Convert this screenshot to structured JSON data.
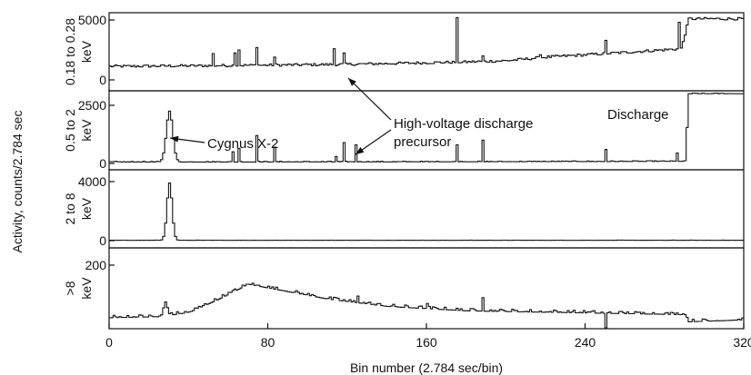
{
  "chart_data": {
    "type": "line",
    "title": "",
    "xlabel": "Bin number (2.784 sec/bin)",
    "ylabel": "Activity, counts/2.784 sec",
    "xlim": [
      0,
      320
    ],
    "x_ticks": [
      {
        "value": 0,
        "label": "0"
      },
      {
        "value": 80,
        "label": "80"
      },
      {
        "value": 160,
        "label": "160"
      },
      {
        "value": 240,
        "label": "240"
      },
      {
        "value": 320,
        "label": "320"
      }
    ],
    "grid": false,
    "panels": [
      {
        "label_lines": [
          "0.18 to 0.28",
          "keV"
        ],
        "ylim": [
          0,
          5000
        ],
        "y_ticks": [
          {
            "value": 0,
            "label": "0"
          },
          {
            "value": 5000,
            "label": "5000"
          }
        ],
        "baseline": [
          [
            0,
            1130
          ],
          [
            60,
            1200
          ],
          [
            120,
            1300
          ],
          [
            180,
            1500
          ],
          [
            200,
            1600
          ],
          [
            220,
            1900
          ],
          [
            260,
            2300
          ],
          [
            288,
            2600
          ],
          [
            292,
            5100
          ]
        ],
        "noise": 110,
        "peaks": [
          {
            "x": 52,
            "y": 2200,
            "w": 1
          },
          {
            "x": 63,
            "y": 2250,
            "w": 1
          },
          {
            "x": 65,
            "y": 2500,
            "w": 1
          },
          {
            "x": 74,
            "y": 2700,
            "w": 1
          },
          {
            "x": 83,
            "y": 1900,
            "w": 1
          },
          {
            "x": 113,
            "y": 2600,
            "w": 1
          },
          {
            "x": 118,
            "y": 2250,
            "w": 1
          },
          {
            "x": 175,
            "y": 5200,
            "w": 1
          },
          {
            "x": 188,
            "y": 2000,
            "w": 1
          },
          {
            "x": 217,
            "y": 2100,
            "w": 1
          },
          {
            "x": 250,
            "y": 3300,
            "w": 1
          },
          {
            "x": 287,
            "y": 4800,
            "w": 1
          }
        ]
      },
      {
        "label_lines": [
          "0.5 to 2",
          "keV"
        ],
        "ylim": [
          0,
          2500
        ],
        "y_ticks": [
          {
            "value": 0,
            "label": "0"
          },
          {
            "value": 2500,
            "label": "2500"
          }
        ],
        "baseline": [
          [
            0,
            60
          ],
          [
            180,
            70
          ],
          [
            290,
            90
          ],
          [
            292,
            3000
          ]
        ],
        "noise": 30,
        "peaks": [
          {
            "x": 30,
            "y": 2250,
            "w": 5
          },
          {
            "x": 62,
            "y": 500,
            "w": 1
          },
          {
            "x": 65,
            "y": 650,
            "w": 1
          },
          {
            "x": 74,
            "y": 1200,
            "w": 1
          },
          {
            "x": 83,
            "y": 700,
            "w": 1
          },
          {
            "x": 114,
            "y": 300,
            "w": 1
          },
          {
            "x": 118,
            "y": 900,
            "w": 1
          },
          {
            "x": 124,
            "y": 800,
            "w": 1
          },
          {
            "x": 175,
            "y": 800,
            "w": 1
          },
          {
            "x": 188,
            "y": 1000,
            "w": 1
          },
          {
            "x": 250,
            "y": 600,
            "w": 1
          },
          {
            "x": 286,
            "y": 450,
            "w": 1
          }
        ]
      },
      {
        "label_lines": [
          "2 to 8",
          "keV"
        ],
        "ylim": [
          0,
          4000
        ],
        "y_ticks": [
          {
            "value": 0,
            "label": "0"
          },
          {
            "value": 4000,
            "label": "4000"
          }
        ],
        "baseline": [
          [
            0,
            20
          ],
          [
            320,
            20
          ]
        ],
        "noise": 15,
        "peaks": [
          {
            "x": 30,
            "y": 3900,
            "w": 4
          }
        ]
      },
      {
        "label_lines": [
          ">8",
          "keV"
        ],
        "ylim": [
          0,
          200
        ],
        "y_ticks": [
          {
            "value": 200,
            "label": "200"
          }
        ],
        "baseline": [
          [
            0,
            22
          ],
          [
            25,
            25
          ],
          [
            40,
            40
          ],
          [
            55,
            85
          ],
          [
            70,
            135
          ],
          [
            90,
            110
          ],
          [
            110,
            85
          ],
          [
            140,
            60
          ],
          [
            180,
            45
          ],
          [
            240,
            38
          ],
          [
            290,
            32
          ],
          [
            292,
            8
          ],
          [
            310,
            12
          ],
          [
            320,
            15
          ]
        ],
        "noise": 9,
        "peaks": [
          {
            "x": 28,
            "y": 75,
            "w": 3
          },
          {
            "x": 125,
            "y": 95,
            "w": 1
          },
          {
            "x": 160,
            "y": 70,
            "w": 1
          },
          {
            "x": 188,
            "y": 90,
            "w": 1
          },
          {
            "x": 250,
            "y": -20,
            "w": 1
          }
        ]
      }
    ],
    "annotations": [
      {
        "id": "cygnus",
        "text": "Cygnus X-2",
        "lines": [
          "Cygnus X-2"
        ]
      },
      {
        "id": "precursor",
        "text": "High-voltage discharge precursor",
        "lines": [
          "High-voltage discharge",
          "precursor"
        ]
      },
      {
        "id": "discharge",
        "text": "Discharge",
        "lines": [
          "Discharge"
        ]
      }
    ]
  }
}
